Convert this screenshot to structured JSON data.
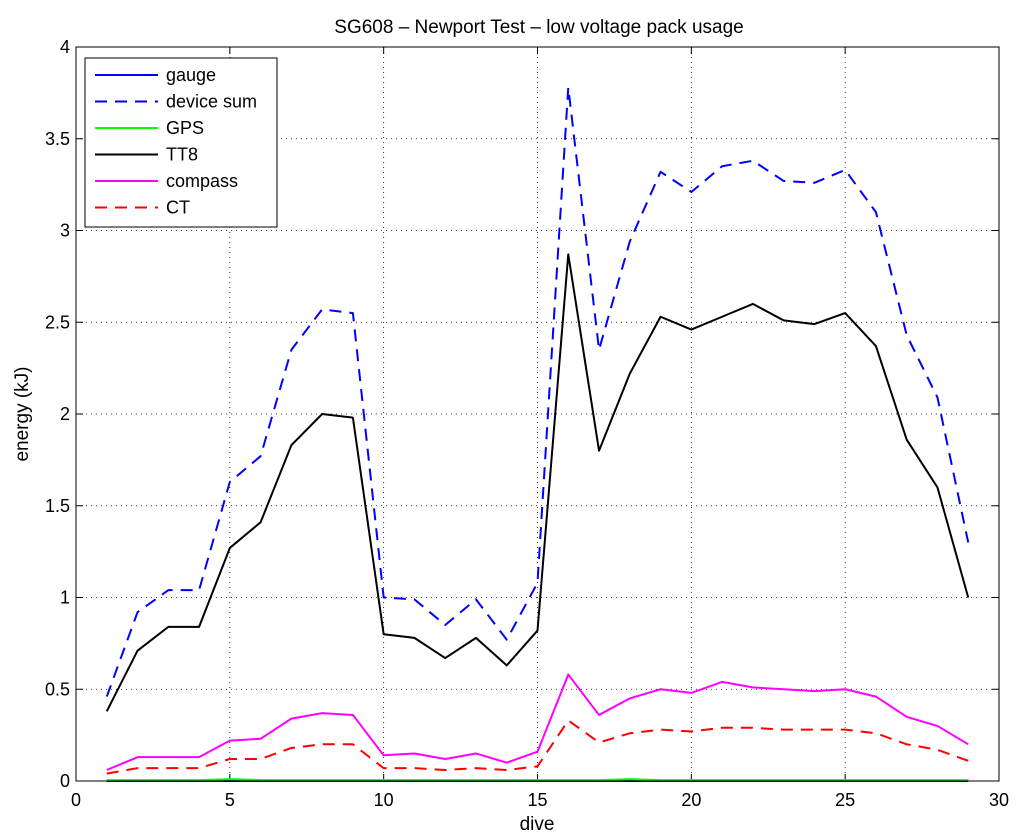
{
  "chart_data": {
    "type": "line",
    "title": "SG608 – Newport Test – low voltage pack usage",
    "xlabel": "dive",
    "ylabel": "energy (kJ)",
    "xlim": [
      0,
      30
    ],
    "ylim": [
      0,
      4
    ],
    "xticks": [
      0,
      5,
      10,
      15,
      20,
      25,
      30
    ],
    "yticks": [
      0,
      0.5,
      1,
      1.5,
      2,
      2.5,
      3,
      3.5,
      4
    ],
    "xtick_labels": [
      "0",
      "5",
      "10",
      "15",
      "20",
      "25",
      "30"
    ],
    "ytick_labels": [
      "0",
      "0.5",
      "1",
      "1.5",
      "2",
      "2.5",
      "3",
      "3.5",
      "4"
    ],
    "grid": true,
    "legend_position": "top-left",
    "x": [
      1,
      2,
      3,
      4,
      5,
      6,
      7,
      8,
      9,
      10,
      11,
      12,
      13,
      14,
      15,
      16,
      17,
      18,
      19,
      20,
      21,
      22,
      23,
      24,
      25,
      26,
      27,
      28,
      29
    ],
    "series": [
      {
        "name": "gauge",
        "color": "#0000ff",
        "dash": "solid",
        "values": [
          0,
          0,
          0,
          0,
          0,
          0,
          0,
          0,
          0,
          0,
          0,
          0,
          0,
          0,
          0,
          0,
          0,
          0,
          0,
          0,
          0,
          0,
          0,
          0,
          0,
          0,
          0,
          0,
          0
        ]
      },
      {
        "name": "device sum",
        "color": "#0000ff",
        "dash": "dashed",
        "values": [
          0.46,
          0.92,
          1.04,
          1.04,
          1.63,
          1.77,
          2.35,
          2.57,
          2.55,
          1.0,
          0.99,
          0.85,
          0.99,
          0.77,
          1.08,
          3.78,
          2.35,
          2.94,
          3.32,
          3.21,
          3.35,
          3.38,
          3.27,
          3.26,
          3.33,
          3.1,
          2.43,
          2.09,
          1.3
        ]
      },
      {
        "name": "GPS",
        "color": "#00ff00",
        "dash": "solid",
        "values": [
          0.005,
          0.005,
          0.005,
          0.005,
          0.01,
          0.005,
          0.005,
          0.005,
          0.005,
          0.005,
          0.005,
          0.005,
          0.005,
          0.005,
          0.005,
          0.005,
          0.005,
          0.01,
          0.005,
          0.005,
          0.005,
          0.005,
          0.005,
          0.005,
          0.005,
          0.005,
          0.005,
          0.005,
          0.005
        ]
      },
      {
        "name": "TT8",
        "color": "#000000",
        "dash": "solid",
        "values": [
          0.38,
          0.71,
          0.84,
          0.84,
          1.27,
          1.41,
          1.83,
          2.0,
          1.98,
          0.8,
          0.78,
          0.67,
          0.78,
          0.63,
          0.82,
          2.87,
          1.8,
          2.22,
          2.53,
          2.46,
          2.53,
          2.6,
          2.51,
          2.49,
          2.55,
          2.37,
          1.86,
          1.6,
          1.0
        ]
      },
      {
        "name": "compass",
        "color": "#ff00ff",
        "dash": "solid",
        "values": [
          0.06,
          0.13,
          0.13,
          0.13,
          0.22,
          0.23,
          0.34,
          0.37,
          0.36,
          0.14,
          0.15,
          0.12,
          0.15,
          0.1,
          0.16,
          0.58,
          0.36,
          0.45,
          0.5,
          0.48,
          0.54,
          0.51,
          0.5,
          0.49,
          0.5,
          0.46,
          0.35,
          0.3,
          0.2
        ]
      },
      {
        "name": "CT",
        "color": "#ff0000",
        "dash": "dashed",
        "values": [
          0.04,
          0.07,
          0.07,
          0.07,
          0.12,
          0.12,
          0.18,
          0.2,
          0.2,
          0.07,
          0.07,
          0.06,
          0.07,
          0.06,
          0.08,
          0.33,
          0.21,
          0.26,
          0.28,
          0.27,
          0.29,
          0.29,
          0.28,
          0.28,
          0.28,
          0.26,
          0.2,
          0.17,
          0.11
        ]
      }
    ]
  }
}
